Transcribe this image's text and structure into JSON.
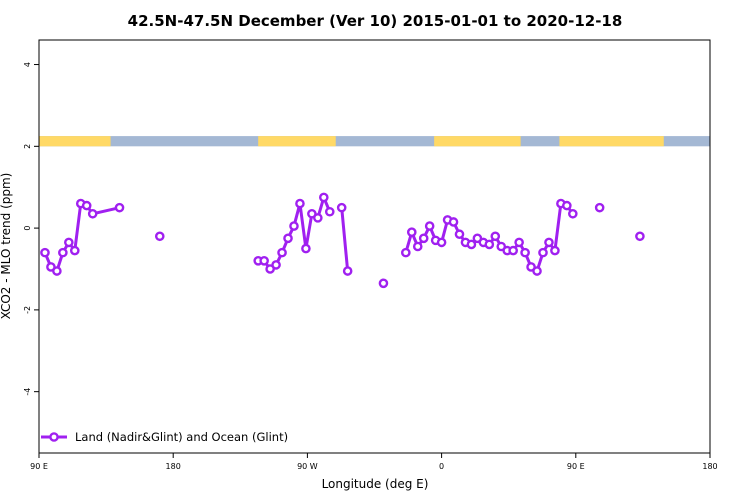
{
  "chart_data": {
    "type": "line",
    "title": "42.5N-47.5N December (Ver 10)   2015-01-01 to 2020-12-18",
    "xlabel": "Longitude (deg E)",
    "ylabel": "XCO2 - MLO trend (ppm)",
    "xlim": [
      90,
      540
    ],
    "ylim": [
      -5.5,
      4.6
    ],
    "x_ticks": [
      {
        "value": 90,
        "label": "90 E"
      },
      {
        "value": 180,
        "label": "180"
      },
      {
        "value": 270,
        "label": "90 W"
      },
      {
        "value": 360,
        "label": "0"
      },
      {
        "value": 450,
        "label": "90 E"
      },
      {
        "value": 540,
        "label": "180"
      }
    ],
    "y_ticks": [
      -4,
      -2,
      0,
      2,
      4
    ],
    "legend": {
      "position": "bottom-left",
      "entries": [
        "Land (Nadir&Glint) and Ocean (Glint)"
      ]
    },
    "land_ocean_strip": {
      "y_range": [
        2.0,
        2.25
      ],
      "land_color": "#ffd966",
      "ocean_color": "#a4b8d4",
      "land_spans": [
        [
          90,
          138
        ],
        [
          237,
          289
        ],
        [
          355,
          413
        ],
        [
          439,
          509
        ]
      ]
    },
    "series": [
      {
        "name": "Land (Nadir&Glint) and Ocean (Glint)",
        "color": "#a020f0",
        "points": [
          [
            94,
            -0.6
          ],
          [
            98,
            -0.95
          ],
          [
            102,
            -1.05
          ],
          [
            106,
            -0.6
          ],
          [
            110,
            -0.35
          ],
          [
            114,
            -0.55
          ],
          [
            118,
            0.6
          ],
          [
            122,
            0.55
          ],
          [
            126,
            0.35
          ],
          [
            144,
            0.5
          ],
          [
            null,
            null
          ],
          [
            171,
            -0.2
          ],
          [
            null,
            null
          ],
          [
            237,
            -0.8
          ],
          [
            241,
            -0.8
          ],
          [
            245,
            -1.0
          ],
          [
            249,
            -0.9
          ],
          [
            253,
            -0.6
          ],
          [
            257,
            -0.25
          ],
          [
            261,
            0.05
          ],
          [
            265,
            0.6
          ],
          [
            269,
            -0.5
          ],
          [
            273,
            0.35
          ],
          [
            277,
            0.25
          ],
          [
            281,
            0.75
          ],
          [
            285,
            0.4
          ],
          [
            null,
            null
          ],
          [
            293,
            0.5
          ],
          [
            297,
            -1.05
          ],
          [
            null,
            null
          ],
          [
            321,
            -1.35
          ],
          [
            null,
            null
          ],
          [
            336,
            -0.6
          ],
          [
            340,
            -0.1
          ],
          [
            344,
            -0.45
          ],
          [
            348,
            -0.25
          ],
          [
            352,
            0.05
          ],
          [
            356,
            -0.3
          ],
          [
            360,
            -0.35
          ],
          [
            364,
            0.2
          ],
          [
            368,
            0.15
          ],
          [
            372,
            -0.15
          ],
          [
            376,
            -0.35
          ],
          [
            380,
            -0.4
          ],
          [
            384,
            -0.25
          ],
          [
            388,
            -0.35
          ],
          [
            392,
            -0.4
          ],
          [
            396,
            -0.2
          ],
          [
            400,
            -0.45
          ],
          [
            404,
            -0.55
          ],
          [
            408,
            -0.55
          ],
          [
            412,
            -0.35
          ],
          [
            416,
            -0.6
          ],
          [
            420,
            -0.95
          ],
          [
            424,
            -1.05
          ],
          [
            428,
            -0.6
          ],
          [
            432,
            -0.35
          ],
          [
            436,
            -0.55
          ],
          [
            440,
            0.6
          ],
          [
            444,
            0.55
          ],
          [
            448,
            0.35
          ],
          [
            null,
            null
          ],
          [
            466,
            0.5
          ],
          [
            null,
            null
          ],
          [
            493,
            -0.2
          ]
        ]
      }
    ]
  }
}
